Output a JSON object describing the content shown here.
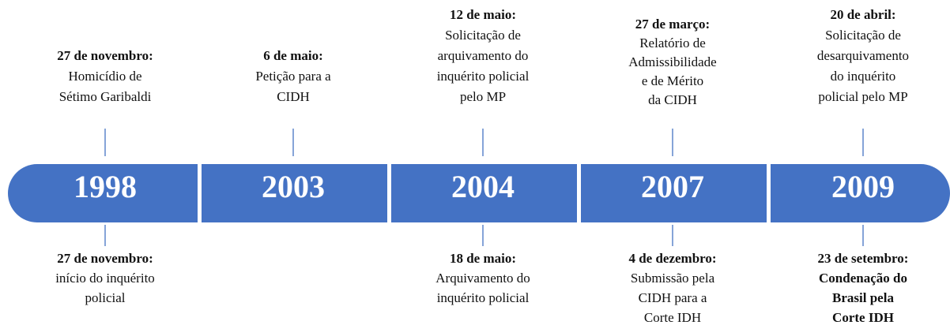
{
  "timeline": [
    {
      "year": "1998",
      "above": {
        "date": "27 de novembro:",
        "lines": [
          "Homicídio de",
          "Sétimo Garibaldi"
        ]
      },
      "below": {
        "date": "27 de novembro:",
        "lines": [
          "início do inquérito",
          "policial"
        ]
      }
    },
    {
      "year": "2003",
      "above": {
        "date": "6 de maio:",
        "lines": [
          "Petição para a",
          "CIDH"
        ]
      }
    },
    {
      "year": "2004",
      "above": {
        "date": "12 de maio:",
        "lines": [
          "Solicitação de",
          "arquivamento do",
          "inquérito policial",
          "pelo MP"
        ]
      },
      "below": {
        "date": "18 de maio:",
        "lines": [
          "Arquivamento do",
          "inquérito policial"
        ]
      }
    },
    {
      "year": "2007",
      "above": {
        "date": "27 de março:",
        "lines": [
          "Relatório de",
          "Admissibilidade",
          "e de Mérito",
          "da CIDH"
        ]
      },
      "below": {
        "date": "4 de dezembro:",
        "lines": [
          "Submissão pela",
          "CIDH para a",
          "Corte IDH"
        ]
      }
    },
    {
      "year": "2009",
      "above": {
        "date": "20 de abril:",
        "lines": [
          "Solicitação de",
          "desarquivamento",
          "do inquérito",
          "policial pelo MP"
        ]
      },
      "below": {
        "date": "23 de setembro:",
        "lines": [
          "Condenação do",
          "Brasil pela",
          "Corte IDH"
        ]
      }
    }
  ]
}
